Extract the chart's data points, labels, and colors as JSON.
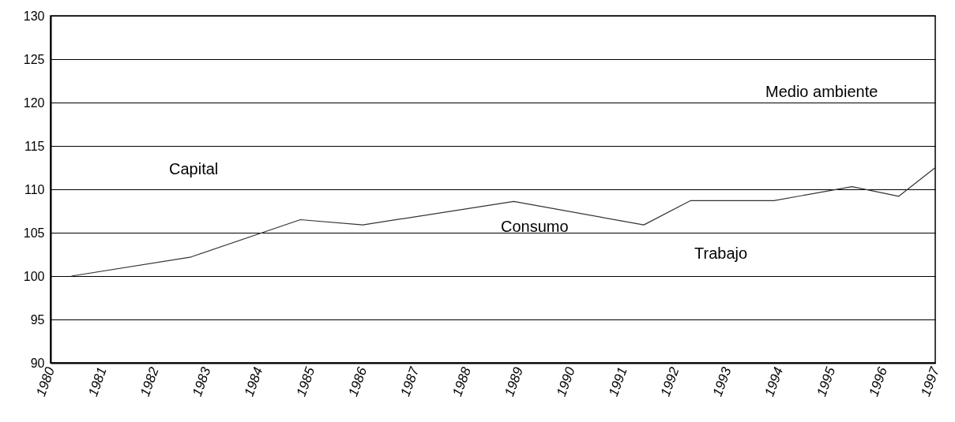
{
  "chart_data": {
    "type": "line",
    "x": [
      1980.4,
      1982.7,
      1984.8,
      1986.0,
      1988.9,
      1991.4,
      1992.3,
      1993.9,
      1995.4,
      1996.3,
      1997.0
    ],
    "series": [
      {
        "color": "#333333",
        "values": [
          100,
          102.2,
          106.5,
          105.9,
          108.6,
          105.9,
          108.7,
          108.7,
          110.3,
          109.2,
          112.5
        ]
      }
    ],
    "xlim": [
      1980,
      1997
    ],
    "xticks": [
      1980,
      1981,
      1982,
      1983,
      1984,
      1985,
      1986,
      1987,
      1988,
      1989,
      1990,
      1991,
      1992,
      1993,
      1994,
      1995,
      1996,
      1997
    ],
    "ylim": [
      90,
      130
    ],
    "yticks": [
      90,
      95,
      100,
      105,
      110,
      115,
      120,
      125,
      130
    ],
    "grid": "y",
    "marker": "none",
    "annotations": [
      "Capital",
      "Consumo",
      "Trabajo",
      "Medio ambiente"
    ]
  }
}
